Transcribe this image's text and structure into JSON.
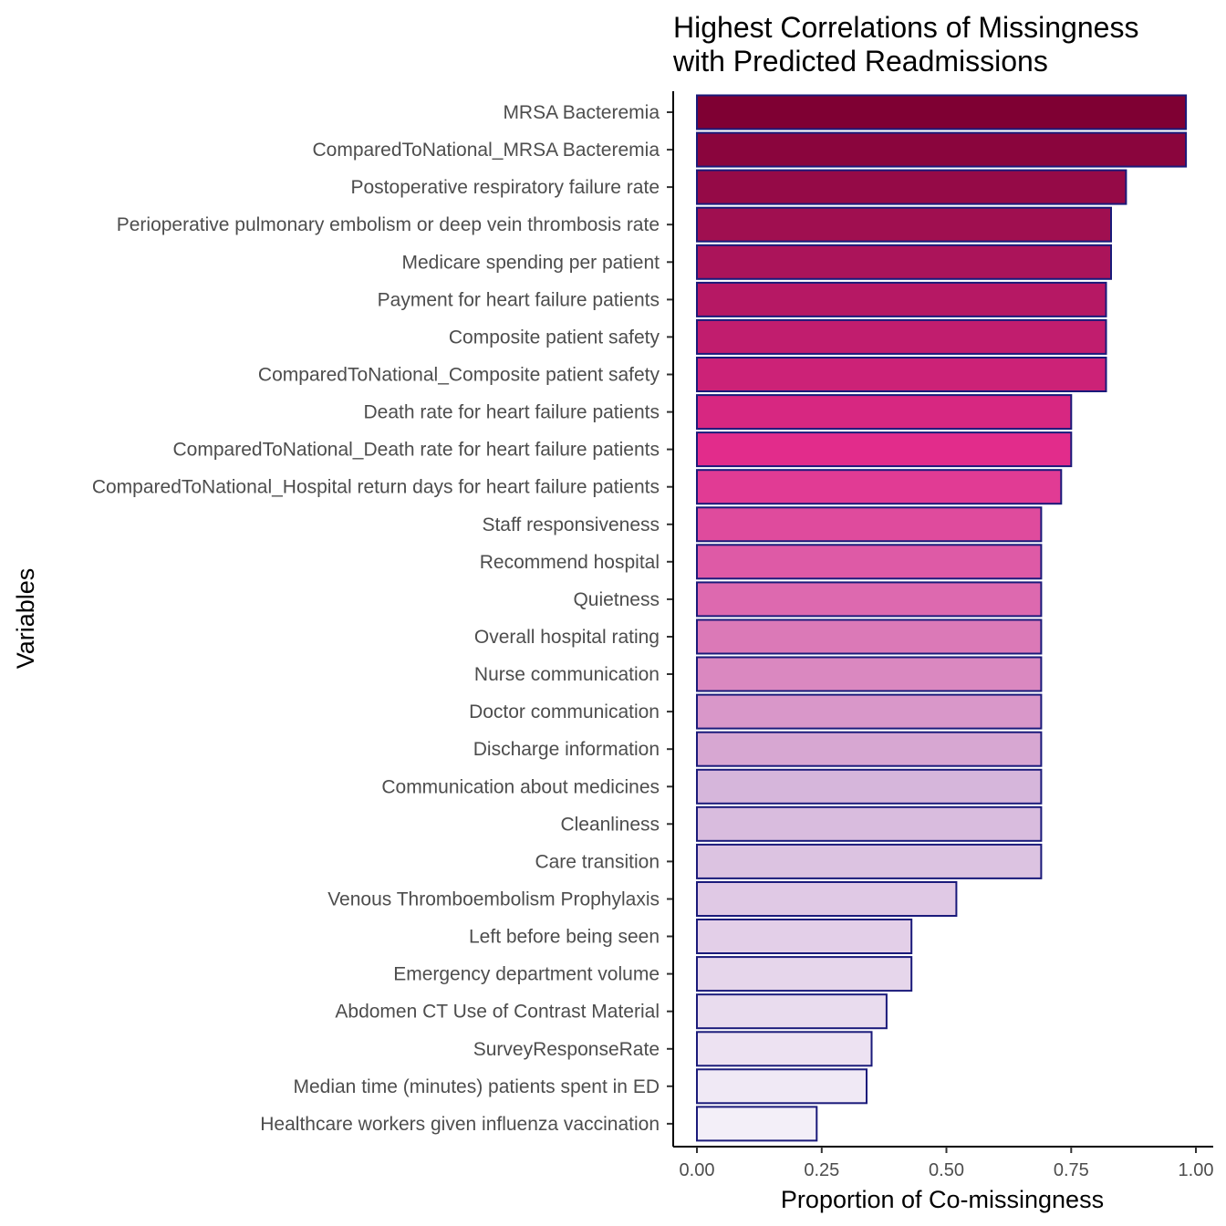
{
  "chart_data": {
    "type": "bar",
    "orientation": "horizontal",
    "title_lines": [
      "Highest Correlations of Missingness",
      "with Predicted Readmissions"
    ],
    "xlabel": "Proportion of Co-missingness",
    "ylabel": "Variables",
    "xlim": [
      0,
      1
    ],
    "x_ticks": [
      0,
      0.25,
      0.5,
      0.75,
      1
    ],
    "x_tick_labels": [
      "0.00",
      "0.25",
      "0.50",
      "0.75",
      "1.00"
    ],
    "grid": false,
    "legend": "none",
    "bar_outline_color": "#1a1a7a",
    "color_scale": [
      "#f3eff8",
      "#d6b6db",
      "#e22c8b",
      "#7f0033"
    ],
    "categories": [
      "MRSA Bacteremia",
      "ComparedToNational_MRSA Bacteremia",
      "Postoperative respiratory failure rate",
      "Perioperative pulmonary embolism or deep vein thrombosis rate",
      "Medicare spending per patient",
      "Payment for heart failure patients",
      "Composite patient safety",
      "ComparedToNational_Composite patient safety",
      "Death rate for heart failure patients",
      "ComparedToNational_Death rate for heart failure patients",
      "ComparedToNational_Hospital return days for heart failure patients",
      "Staff responsiveness",
      "Recommend hospital",
      "Quietness",
      "Overall hospital rating",
      "Nurse communication",
      "Doctor communication",
      "Discharge information",
      "Communication about medicines",
      "Cleanliness",
      "Care transition",
      "Venous Thromboembolism Prophylaxis",
      "Left before being seen",
      "Emergency department volume",
      "Abdomen CT Use of Contrast Material",
      "SurveyResponseRate",
      "Median time (minutes) patients spent in ED",
      "Healthcare workers given influenza vaccination"
    ],
    "values": [
      0.98,
      0.98,
      0.86,
      0.83,
      0.83,
      0.82,
      0.82,
      0.82,
      0.75,
      0.75,
      0.73,
      0.69,
      0.69,
      0.69,
      0.69,
      0.69,
      0.69,
      0.69,
      0.69,
      0.69,
      0.69,
      0.52,
      0.43,
      0.43,
      0.38,
      0.35,
      0.34,
      0.24
    ]
  }
}
